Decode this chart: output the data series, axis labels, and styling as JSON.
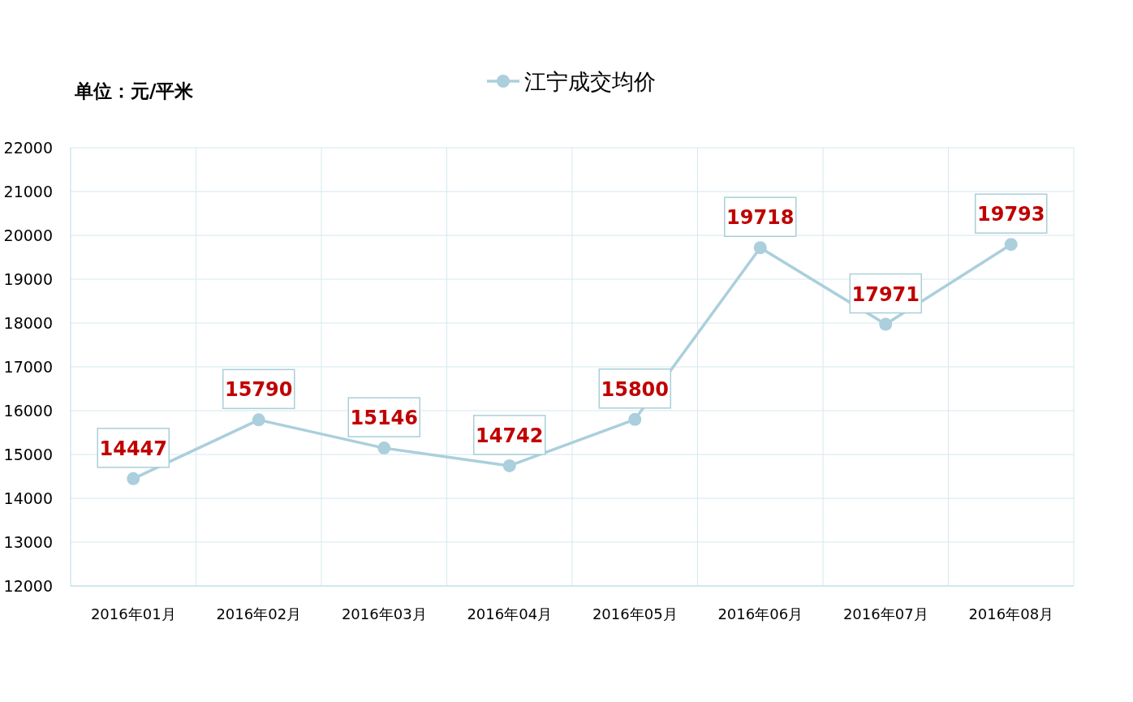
{
  "chart_data": {
    "type": "line",
    "categories": [
      "2016年01月",
      "2016年02月",
      "2016年03月",
      "2016年04月",
      "2016年05月",
      "2016年06月",
      "2016年07月",
      "2016年08月"
    ],
    "series": [
      {
        "name": "江宁成交均价",
        "color": "#abcfdc",
        "values": [
          14447,
          15790,
          15146,
          14742,
          15800,
          19718,
          17971,
          19793
        ]
      }
    ],
    "ylim": [
      12000,
      22000
    ],
    "yticks": [
      12000,
      13000,
      14000,
      15000,
      16000,
      17000,
      18000,
      19000,
      20000,
      21000,
      22000
    ],
    "grid": true,
    "legend": "top",
    "marker": "circle",
    "line_style": "solid",
    "data_labels": true,
    "annotations": [
      "单位：元/平米"
    ]
  }
}
